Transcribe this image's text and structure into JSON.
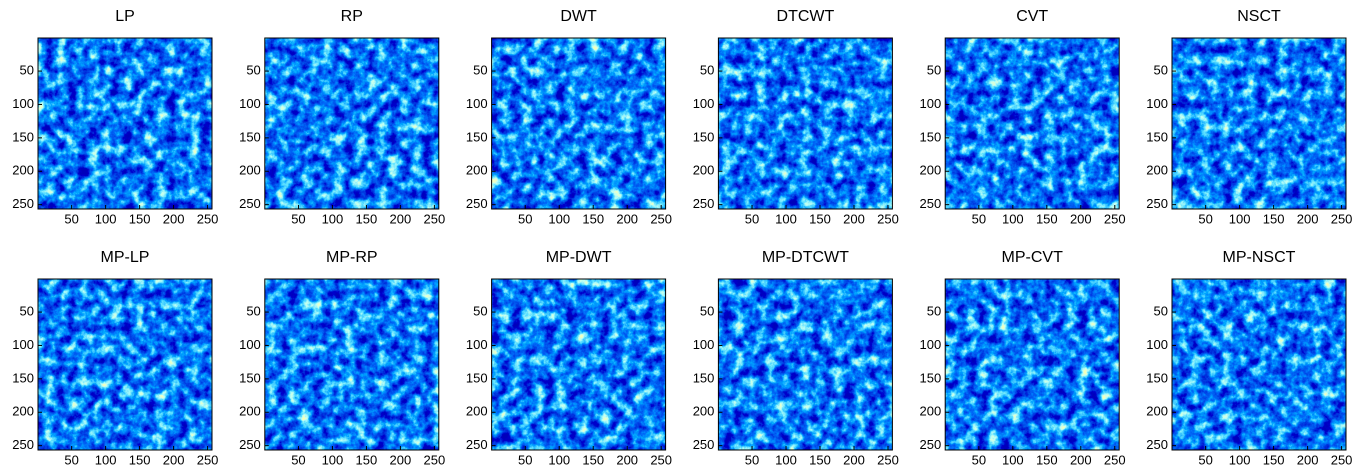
{
  "chart_data": [
    {
      "type": "image",
      "title": "LP",
      "xlim": [
        0.5,
        256.5
      ],
      "ylim": [
        0.5,
        256.5
      ],
      "y_reversed": true,
      "xticks": [
        50,
        100,
        150,
        200,
        250
      ],
      "yticks": [
        50,
        100,
        150,
        200,
        250
      ]
    },
    {
      "type": "image",
      "title": "RP",
      "xlim": [
        0.5,
        256.5
      ],
      "ylim": [
        0.5,
        256.5
      ],
      "y_reversed": true,
      "xticks": [
        50,
        100,
        150,
        200,
        250
      ],
      "yticks": [
        50,
        100,
        150,
        200,
        250
      ]
    },
    {
      "type": "image",
      "title": "DWT",
      "xlim": [
        0.5,
        256.5
      ],
      "ylim": [
        0.5,
        256.5
      ],
      "y_reversed": true,
      "xticks": [
        50,
        100,
        150,
        200,
        250
      ],
      "yticks": [
        50,
        100,
        150,
        200,
        250
      ]
    },
    {
      "type": "image",
      "title": "DTCWT",
      "xlim": [
        0.5,
        256.5
      ],
      "ylim": [
        0.5,
        256.5
      ],
      "y_reversed": true,
      "xticks": [
        50,
        100,
        150,
        200,
        250
      ],
      "yticks": [
        50,
        100,
        150,
        200,
        250
      ]
    },
    {
      "type": "image",
      "title": "CVT",
      "xlim": [
        0.5,
        256.5
      ],
      "ylim": [
        0.5,
        256.5
      ],
      "y_reversed": true,
      "xticks": [
        50,
        100,
        150,
        200,
        250
      ],
      "yticks": [
        50,
        100,
        150,
        200,
        250
      ]
    },
    {
      "type": "image",
      "title": "NSCT",
      "xlim": [
        0.5,
        256.5
      ],
      "ylim": [
        0.5,
        256.5
      ],
      "y_reversed": true,
      "xticks": [
        50,
        100,
        150,
        200,
        250
      ],
      "yticks": [
        50,
        100,
        150,
        200,
        250
      ]
    },
    {
      "type": "image",
      "title": "MP-LP",
      "xlim": [
        0.5,
        256.5
      ],
      "ylim": [
        0.5,
        256.5
      ],
      "y_reversed": true,
      "xticks": [
        50,
        100,
        150,
        200,
        250
      ],
      "yticks": [
        50,
        100,
        150,
        200,
        250
      ]
    },
    {
      "type": "image",
      "title": "MP-RP",
      "xlim": [
        0.5,
        256.5
      ],
      "ylim": [
        0.5,
        256.5
      ],
      "y_reversed": true,
      "xticks": [
        50,
        100,
        150,
        200,
        250
      ],
      "yticks": [
        50,
        100,
        150,
        200,
        250
      ]
    },
    {
      "type": "image",
      "title": "MP-DWT",
      "xlim": [
        0.5,
        256.5
      ],
      "ylim": [
        0.5,
        256.5
      ],
      "y_reversed": true,
      "xticks": [
        50,
        100,
        150,
        200,
        250
      ],
      "yticks": [
        50,
        100,
        150,
        200,
        250
      ]
    },
    {
      "type": "image",
      "title": "MP-DTCWT",
      "xlim": [
        0.5,
        256.5
      ],
      "ylim": [
        0.5,
        256.5
      ],
      "y_reversed": true,
      "xticks": [
        50,
        100,
        150,
        200,
        250
      ],
      "yticks": [
        50,
        100,
        150,
        200,
        250
      ]
    },
    {
      "type": "image",
      "title": "MP-CVT",
      "xlim": [
        0.5,
        256.5
      ],
      "ylim": [
        0.5,
        256.5
      ],
      "y_reversed": true,
      "xticks": [
        50,
        100,
        150,
        200,
        250
      ],
      "yticks": [
        50,
        100,
        150,
        200,
        250
      ]
    },
    {
      "type": "image",
      "title": "MP-NSCT",
      "xlim": [
        0.5,
        256.5
      ],
      "ylim": [
        0.5,
        256.5
      ],
      "y_reversed": true,
      "xticks": [
        50,
        100,
        150,
        200,
        250
      ],
      "yticks": [
        50,
        100,
        150,
        200,
        250
      ]
    }
  ]
}
